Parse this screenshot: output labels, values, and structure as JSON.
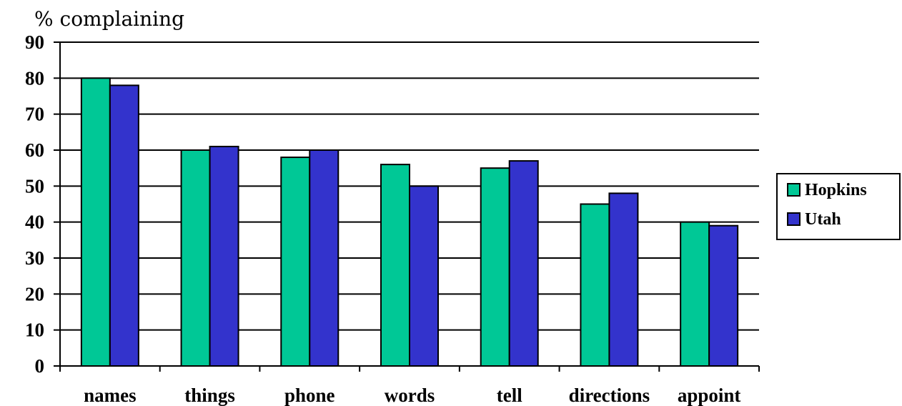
{
  "chart_data": {
    "type": "bar",
    "title": "",
    "ylabel": "% complaining",
    "xlabel": "",
    "ylim": [
      0,
      90
    ],
    "yticks": [
      0,
      10,
      20,
      30,
      40,
      50,
      60,
      70,
      80,
      90
    ],
    "grid": true,
    "legend_position": "right",
    "categories": [
      "names",
      "things",
      "phone",
      "words",
      "tell",
      "directions",
      "appoint"
    ],
    "series": [
      {
        "name": "Hopkins",
        "color": "#00c896",
        "values": [
          80,
          60,
          58,
          56,
          55,
          45,
          40
        ]
      },
      {
        "name": "Utah",
        "color": "#3333cc",
        "values": [
          78,
          61,
          60,
          50,
          57,
          48,
          39
        ]
      }
    ]
  }
}
